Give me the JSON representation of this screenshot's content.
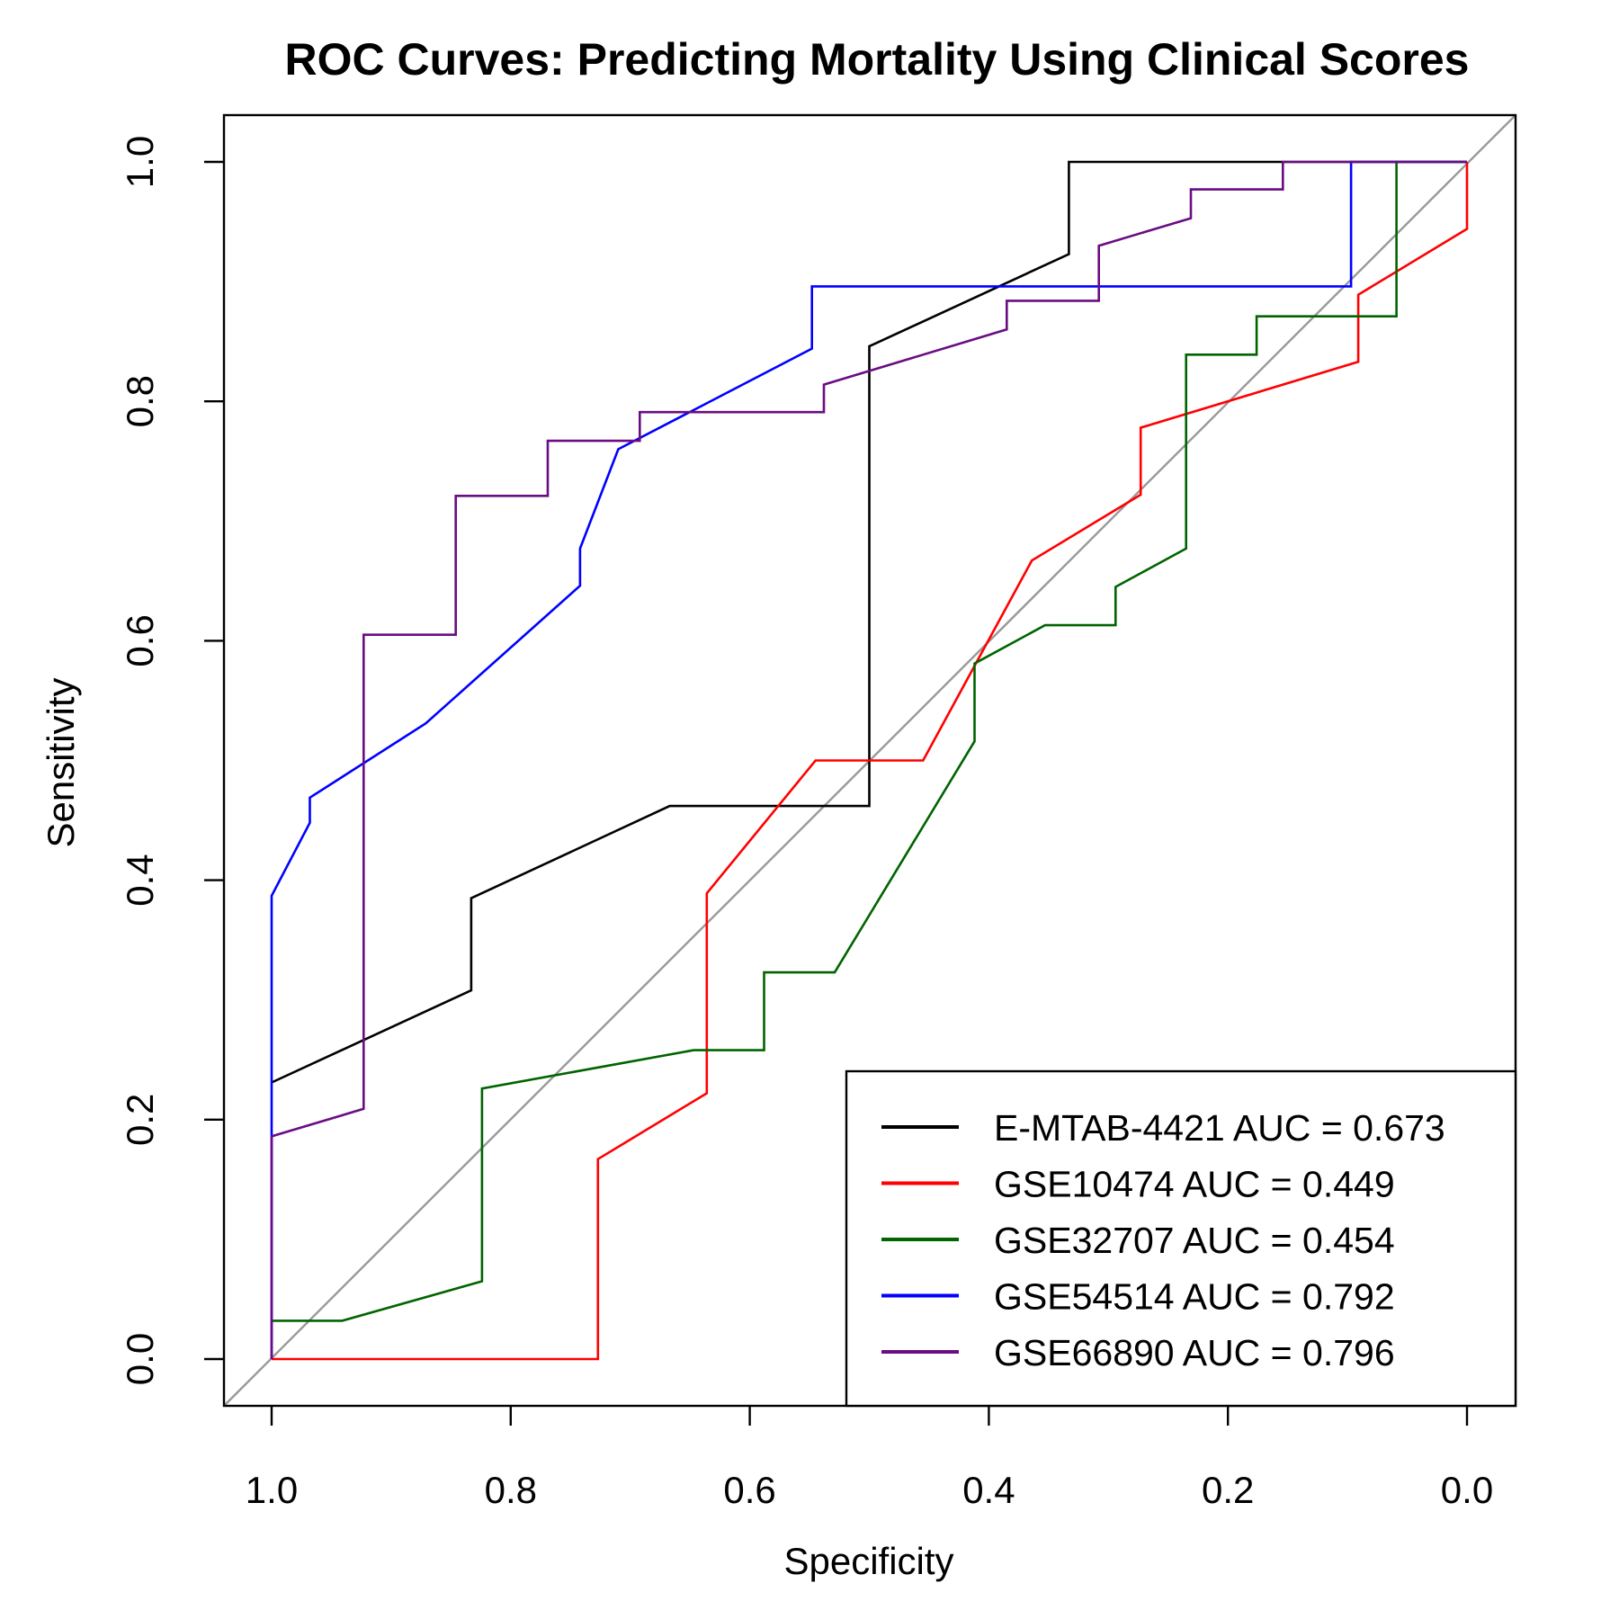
{
  "chart_data": {
    "type": "line",
    "title": "ROC Curves: Predicting Mortality Using Clinical Scores",
    "xlabel": "Specificity",
    "ylabel": "Sensitivity",
    "xlim": [
      1.0,
      0.0
    ],
    "ylim": [
      0.0,
      1.0
    ],
    "x_reversed": true,
    "x_ticks": [
      "1.0",
      "0.8",
      "0.6",
      "0.4",
      "0.2",
      "0.0"
    ],
    "y_ticks": [
      "0.0",
      "0.2",
      "0.4",
      "0.6",
      "0.8",
      "1.0"
    ],
    "grid": false,
    "legend_position": "bottom-right",
    "reference_line": {
      "color": "#999999"
    },
    "series": [
      {
        "name": "E-MTAB-4421 AUC = 0.673",
        "color": "#000000",
        "points": [
          [
            1.0,
            0.231
          ],
          [
            0.833,
            0.308
          ],
          [
            0.833,
            0.385
          ],
          [
            0.667,
            0.462
          ],
          [
            0.5,
            0.462
          ],
          [
            0.5,
            0.846
          ],
          [
            0.333,
            0.923
          ],
          [
            0.333,
            1.0
          ],
          [
            0.0,
            1.0
          ]
        ]
      },
      {
        "name": "GSE10474 AUC = 0.449",
        "color": "#ff0000",
        "points": [
          [
            1.0,
            0.0
          ],
          [
            0.727,
            0.0
          ],
          [
            0.727,
            0.167
          ],
          [
            0.636,
            0.222
          ],
          [
            0.636,
            0.389
          ],
          [
            0.545,
            0.5
          ],
          [
            0.455,
            0.5
          ],
          [
            0.364,
            0.667
          ],
          [
            0.273,
            0.722
          ],
          [
            0.273,
            0.778
          ],
          [
            0.091,
            0.833
          ],
          [
            0.091,
            0.889
          ],
          [
            0.0,
            0.944
          ],
          [
            0.0,
            1.0
          ]
        ]
      },
      {
        "name": "GSE32707 AUC = 0.454",
        "color": "#006400",
        "points": [
          [
            1.0,
            0.032
          ],
          [
            0.941,
            0.032
          ],
          [
            0.824,
            0.065
          ],
          [
            0.824,
            0.226
          ],
          [
            0.647,
            0.258
          ],
          [
            0.588,
            0.258
          ],
          [
            0.588,
            0.323
          ],
          [
            0.529,
            0.323
          ],
          [
            0.412,
            0.516
          ],
          [
            0.412,
            0.581
          ],
          [
            0.353,
            0.613
          ],
          [
            0.294,
            0.613
          ],
          [
            0.294,
            0.645
          ],
          [
            0.235,
            0.677
          ],
          [
            0.235,
            0.839
          ],
          [
            0.176,
            0.839
          ],
          [
            0.176,
            0.871
          ],
          [
            0.059,
            0.871
          ],
          [
            0.059,
            1.0
          ],
          [
            0.0,
            1.0
          ]
        ]
      },
      {
        "name": "GSE54514 AUC = 0.792",
        "color": "#0000ff",
        "points": [
          [
            1.0,
            0.0
          ],
          [
            1.0,
            0.387
          ],
          [
            0.968,
            0.448
          ],
          [
            0.968,
            0.469
          ],
          [
            0.871,
            0.531
          ],
          [
            0.742,
            0.646
          ],
          [
            0.742,
            0.677
          ],
          [
            0.71,
            0.76
          ],
          [
            0.548,
            0.844
          ],
          [
            0.548,
            0.896
          ],
          [
            0.097,
            0.896
          ],
          [
            0.097,
            1.0
          ],
          [
            0.0,
            1.0
          ]
        ]
      },
      {
        "name": "GSE66890 AUC = 0.796",
        "color": "#6a0d83",
        "points": [
          [
            1.0,
            0.0
          ],
          [
            1.0,
            0.186
          ],
          [
            0.923,
            0.209
          ],
          [
            0.923,
            0.605
          ],
          [
            0.846,
            0.605
          ],
          [
            0.846,
            0.721
          ],
          [
            0.769,
            0.721
          ],
          [
            0.769,
            0.767
          ],
          [
            0.692,
            0.767
          ],
          [
            0.692,
            0.791
          ],
          [
            0.538,
            0.791
          ],
          [
            0.538,
            0.814
          ],
          [
            0.385,
            0.86
          ],
          [
            0.385,
            0.884
          ],
          [
            0.308,
            0.884
          ],
          [
            0.308,
            0.93
          ],
          [
            0.231,
            0.953
          ],
          [
            0.231,
            0.977
          ],
          [
            0.154,
            0.977
          ],
          [
            0.154,
            1.0
          ],
          [
            0.0,
            1.0
          ]
        ]
      }
    ]
  }
}
